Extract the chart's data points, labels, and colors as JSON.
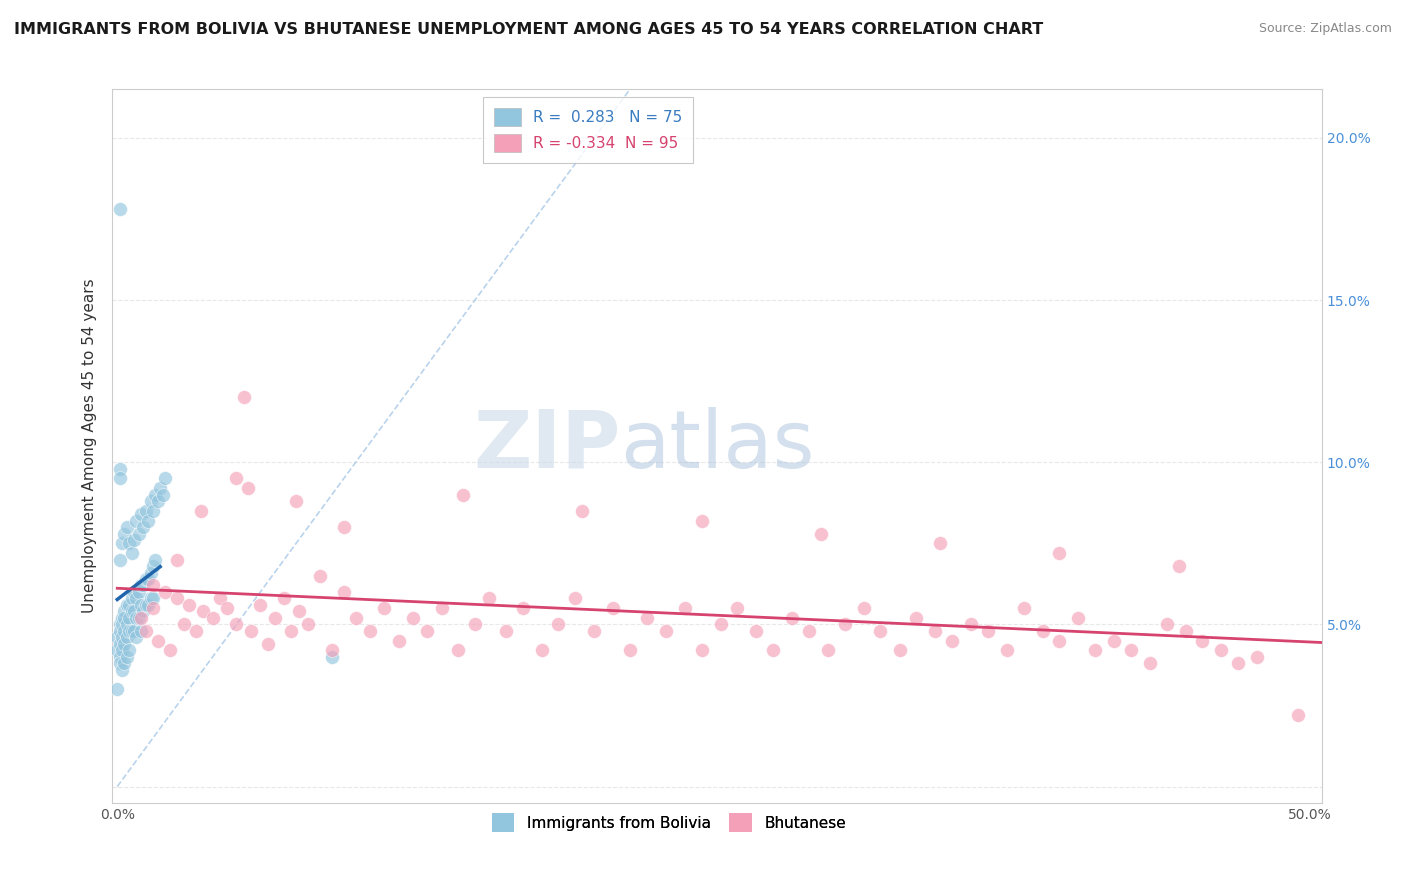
{
  "title": "IMMIGRANTS FROM BOLIVIA VS BHUTANESE UNEMPLOYMENT AMONG AGES 45 TO 54 YEARS CORRELATION CHART",
  "source": "Source: ZipAtlas.com",
  "ylabel": "Unemployment Among Ages 45 to 54 years",
  "xlim": [
    -0.002,
    0.505
  ],
  "ylim": [
    -0.005,
    0.215
  ],
  "xticks": [
    0.0,
    0.1,
    0.2,
    0.3,
    0.4,
    0.5
  ],
  "xticklabels": [
    "0.0%",
    "",
    "",
    "",
    "",
    "50.0%"
  ],
  "yticks": [
    0.0,
    0.05,
    0.1,
    0.15,
    0.2
  ],
  "yticklabels_left": [
    "",
    "",
    "",
    "",
    ""
  ],
  "yticklabels_right": [
    "",
    "5.0%",
    "10.0%",
    "15.0%",
    "20.0%"
  ],
  "bolivia_R": 0.283,
  "bolivia_N": 75,
  "bhutan_R": -0.334,
  "bhutan_N": 95,
  "bolivia_color": "#92c5de",
  "bhutan_color": "#f4a0b8",
  "bolivia_trend_color": "#2166ac",
  "bhutan_trend_color": "#d6436e",
  "diag_line_color": "#a8c8e8",
  "watermark_zip": "ZIP",
  "watermark_atlas": "atlas",
  "background_color": "#ffffff",
  "grid_color": "#e8e8e8",
  "bolivia_x": [
    0.0,
    0.0,
    0.001,
    0.001,
    0.001,
    0.001,
    0.001,
    0.002,
    0.002,
    0.002,
    0.002,
    0.002,
    0.003,
    0.003,
    0.003,
    0.003,
    0.003,
    0.004,
    0.004,
    0.004,
    0.004,
    0.005,
    0.005,
    0.005,
    0.005,
    0.006,
    0.006,
    0.006,
    0.007,
    0.007,
    0.007,
    0.008,
    0.008,
    0.008,
    0.009,
    0.009,
    0.01,
    0.01,
    0.01,
    0.011,
    0.011,
    0.012,
    0.012,
    0.013,
    0.013,
    0.014,
    0.014,
    0.015,
    0.015,
    0.016,
    0.001,
    0.002,
    0.003,
    0.004,
    0.005,
    0.006,
    0.007,
    0.008,
    0.009,
    0.01,
    0.011,
    0.012,
    0.013,
    0.014,
    0.015,
    0.016,
    0.017,
    0.018,
    0.019,
    0.02,
    0.0,
    0.001,
    0.001,
    0.001,
    0.09
  ],
  "bolivia_y": [
    0.046,
    0.042,
    0.05,
    0.048,
    0.044,
    0.04,
    0.038,
    0.052,
    0.05,
    0.046,
    0.042,
    0.036,
    0.054,
    0.052,
    0.048,
    0.044,
    0.038,
    0.056,
    0.05,
    0.046,
    0.04,
    0.056,
    0.052,
    0.048,
    0.042,
    0.058,
    0.054,
    0.048,
    0.06,
    0.054,
    0.048,
    0.058,
    0.052,
    0.046,
    0.06,
    0.052,
    0.062,
    0.056,
    0.048,
    0.062,
    0.054,
    0.064,
    0.056,
    0.064,
    0.056,
    0.066,
    0.058,
    0.068,
    0.058,
    0.07,
    0.07,
    0.075,
    0.078,
    0.08,
    0.075,
    0.072,
    0.076,
    0.082,
    0.078,
    0.084,
    0.08,
    0.085,
    0.082,
    0.088,
    0.085,
    0.09,
    0.088,
    0.092,
    0.09,
    0.095,
    0.03,
    0.098,
    0.095,
    0.178,
    0.04
  ],
  "bhutan_x": [
    0.01,
    0.012,
    0.015,
    0.017,
    0.02,
    0.022,
    0.025,
    0.028,
    0.03,
    0.033,
    0.036,
    0.04,
    0.043,
    0.046,
    0.05,
    0.053,
    0.056,
    0.06,
    0.063,
    0.066,
    0.07,
    0.073,
    0.076,
    0.08,
    0.085,
    0.09,
    0.095,
    0.1,
    0.106,
    0.112,
    0.118,
    0.124,
    0.13,
    0.136,
    0.143,
    0.15,
    0.156,
    0.163,
    0.17,
    0.178,
    0.185,
    0.192,
    0.2,
    0.208,
    0.215,
    0.222,
    0.23,
    0.238,
    0.245,
    0.253,
    0.26,
    0.268,
    0.275,
    0.283,
    0.29,
    0.298,
    0.305,
    0.313,
    0.32,
    0.328,
    0.335,
    0.343,
    0.35,
    0.358,
    0.365,
    0.373,
    0.38,
    0.388,
    0.395,
    0.403,
    0.41,
    0.418,
    0.425,
    0.433,
    0.44,
    0.448,
    0.455,
    0.463,
    0.47,
    0.478,
    0.015,
    0.025,
    0.035,
    0.055,
    0.075,
    0.095,
    0.145,
    0.195,
    0.245,
    0.295,
    0.345,
    0.395,
    0.445,
    0.495,
    0.05
  ],
  "bhutan_y": [
    0.052,
    0.048,
    0.055,
    0.045,
    0.06,
    0.042,
    0.058,
    0.05,
    0.056,
    0.048,
    0.054,
    0.052,
    0.058,
    0.055,
    0.05,
    0.12,
    0.048,
    0.056,
    0.044,
    0.052,
    0.058,
    0.048,
    0.054,
    0.05,
    0.065,
    0.042,
    0.06,
    0.052,
    0.048,
    0.055,
    0.045,
    0.052,
    0.048,
    0.055,
    0.042,
    0.05,
    0.058,
    0.048,
    0.055,
    0.042,
    0.05,
    0.058,
    0.048,
    0.055,
    0.042,
    0.052,
    0.048,
    0.055,
    0.042,
    0.05,
    0.055,
    0.048,
    0.042,
    0.052,
    0.048,
    0.042,
    0.05,
    0.055,
    0.048,
    0.042,
    0.052,
    0.048,
    0.045,
    0.05,
    0.048,
    0.042,
    0.055,
    0.048,
    0.045,
    0.052,
    0.042,
    0.045,
    0.042,
    0.038,
    0.05,
    0.048,
    0.045,
    0.042,
    0.038,
    0.04,
    0.062,
    0.07,
    0.085,
    0.092,
    0.088,
    0.08,
    0.09,
    0.085,
    0.082,
    0.078,
    0.075,
    0.072,
    0.068,
    0.022,
    0.095
  ]
}
